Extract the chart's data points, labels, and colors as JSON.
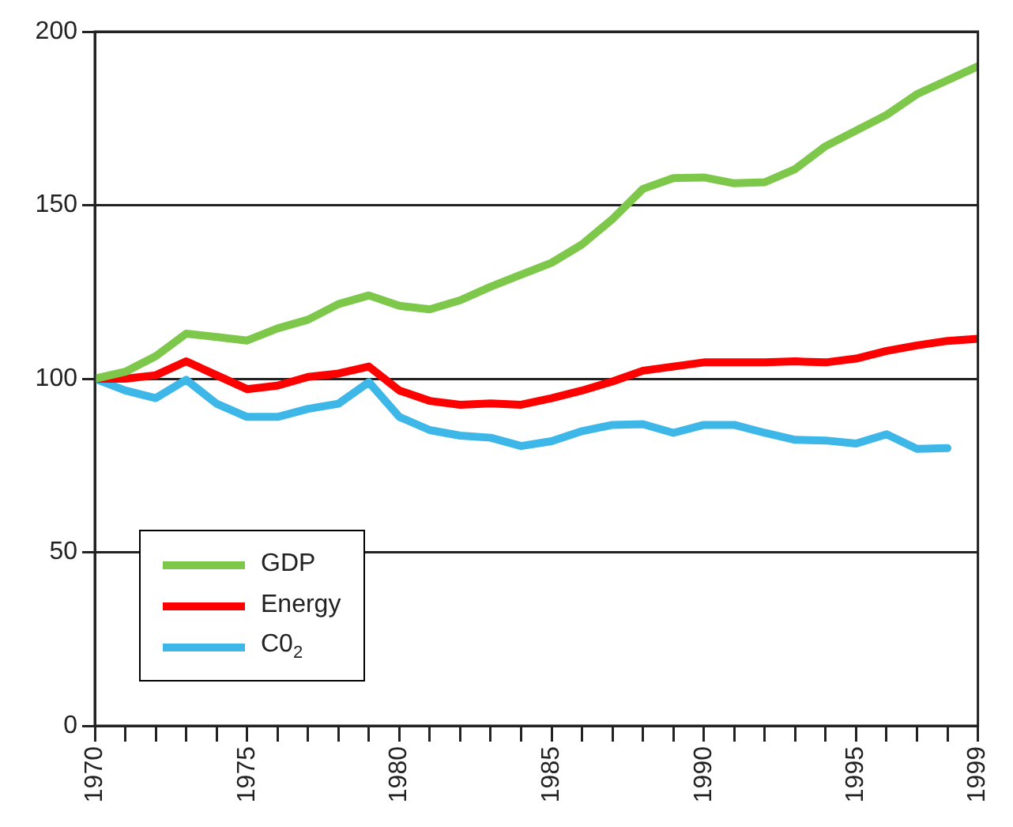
{
  "chart_data": {
    "type": "line",
    "x": [
      1970,
      1971,
      1972,
      1973,
      1974,
      1975,
      1976,
      1977,
      1978,
      1979,
      1980,
      1981,
      1982,
      1983,
      1984,
      1985,
      1986,
      1987,
      1988,
      1989,
      1990,
      1991,
      1992,
      1993,
      1994,
      1995,
      1996,
      1997,
      1998,
      1999
    ],
    "series": [
      {
        "name": "GDP",
        "color": "#7dc84a",
        "values": [
          100,
          102,
          106.5,
          113,
          112,
          111,
          114.5,
          117,
          121.5,
          124,
          121,
          120,
          122.6,
          126.5,
          130,
          133.4,
          138.7,
          146,
          154.7,
          157.8,
          158,
          156.3,
          156.6,
          160.4,
          167,
          171.5,
          176,
          182,
          186,
          190
        ]
      },
      {
        "name": "Energy",
        "color": "#ff0000",
        "values": [
          100,
          100,
          101,
          105,
          101,
          97,
          98,
          100.5,
          101.5,
          103.5,
          96.6,
          93.6,
          92.5,
          92.9,
          92.5,
          94.4,
          96.6,
          99.2,
          102.3,
          103.5,
          104.7,
          104.7,
          104.7,
          105,
          104.7,
          105.8,
          108,
          109.6,
          110.9,
          111.5
        ]
      },
      {
        "name": "C0$_{2}$",
        "color": "#3db6e8",
        "values": [
          100,
          96.6,
          94.4,
          99.7,
          92.8,
          89,
          89,
          91.3,
          92.8,
          99,
          89,
          85.2,
          83.6,
          83,
          80.6,
          82,
          84.9,
          86.7,
          86.9,
          84.4,
          86.7,
          86.7,
          84.4,
          82.4,
          82.2,
          81.3,
          84,
          79.8,
          80,
          null
        ]
      }
    ],
    "xlim": [
      1970,
      1999
    ],
    "xticks": [
      1970,
      {
        "value": 1971,
        "label": null
      },
      {
        "value": 1972,
        "label": null
      },
      {
        "value": 1973,
        "label": null
      },
      {
        "value": 1974,
        "label": null
      },
      1975,
      {
        "value": 1976,
        "label": null
      },
      {
        "value": 1977,
        "label": null
      },
      {
        "value": 1978,
        "label": null
      },
      {
        "value": 1979,
        "label": null
      },
      1980,
      {
        "value": 1981,
        "label": null
      },
      {
        "value": 1982,
        "label": null
      },
      {
        "value": 1983,
        "label": null
      },
      {
        "value": 1984,
        "label": null
      },
      1985,
      {
        "value": 1986,
        "label": null
      },
      {
        "value": 1987,
        "label": null
      },
      {
        "value": 1988,
        "label": null
      },
      {
        "value": 1989,
        "label": null
      },
      1990,
      {
        "value": 1991,
        "label": null
      },
      {
        "value": 1992,
        "label": null
      },
      {
        "value": 1993,
        "label": null
      },
      {
        "value": 1994,
        "label": null
      },
      1995,
      {
        "value": 1996,
        "label": null
      },
      {
        "value": 1997,
        "label": null
      },
      {
        "value": 1998,
        "label": null
      },
      1999
    ],
    "ylim": [
      0,
      200
    ],
    "yticks": [
      0,
      50,
      100,
      150,
      200
    ],
    "grid": "y",
    "legend": "bottom left",
    "marker": "none",
    "line_style": "solid"
  }
}
